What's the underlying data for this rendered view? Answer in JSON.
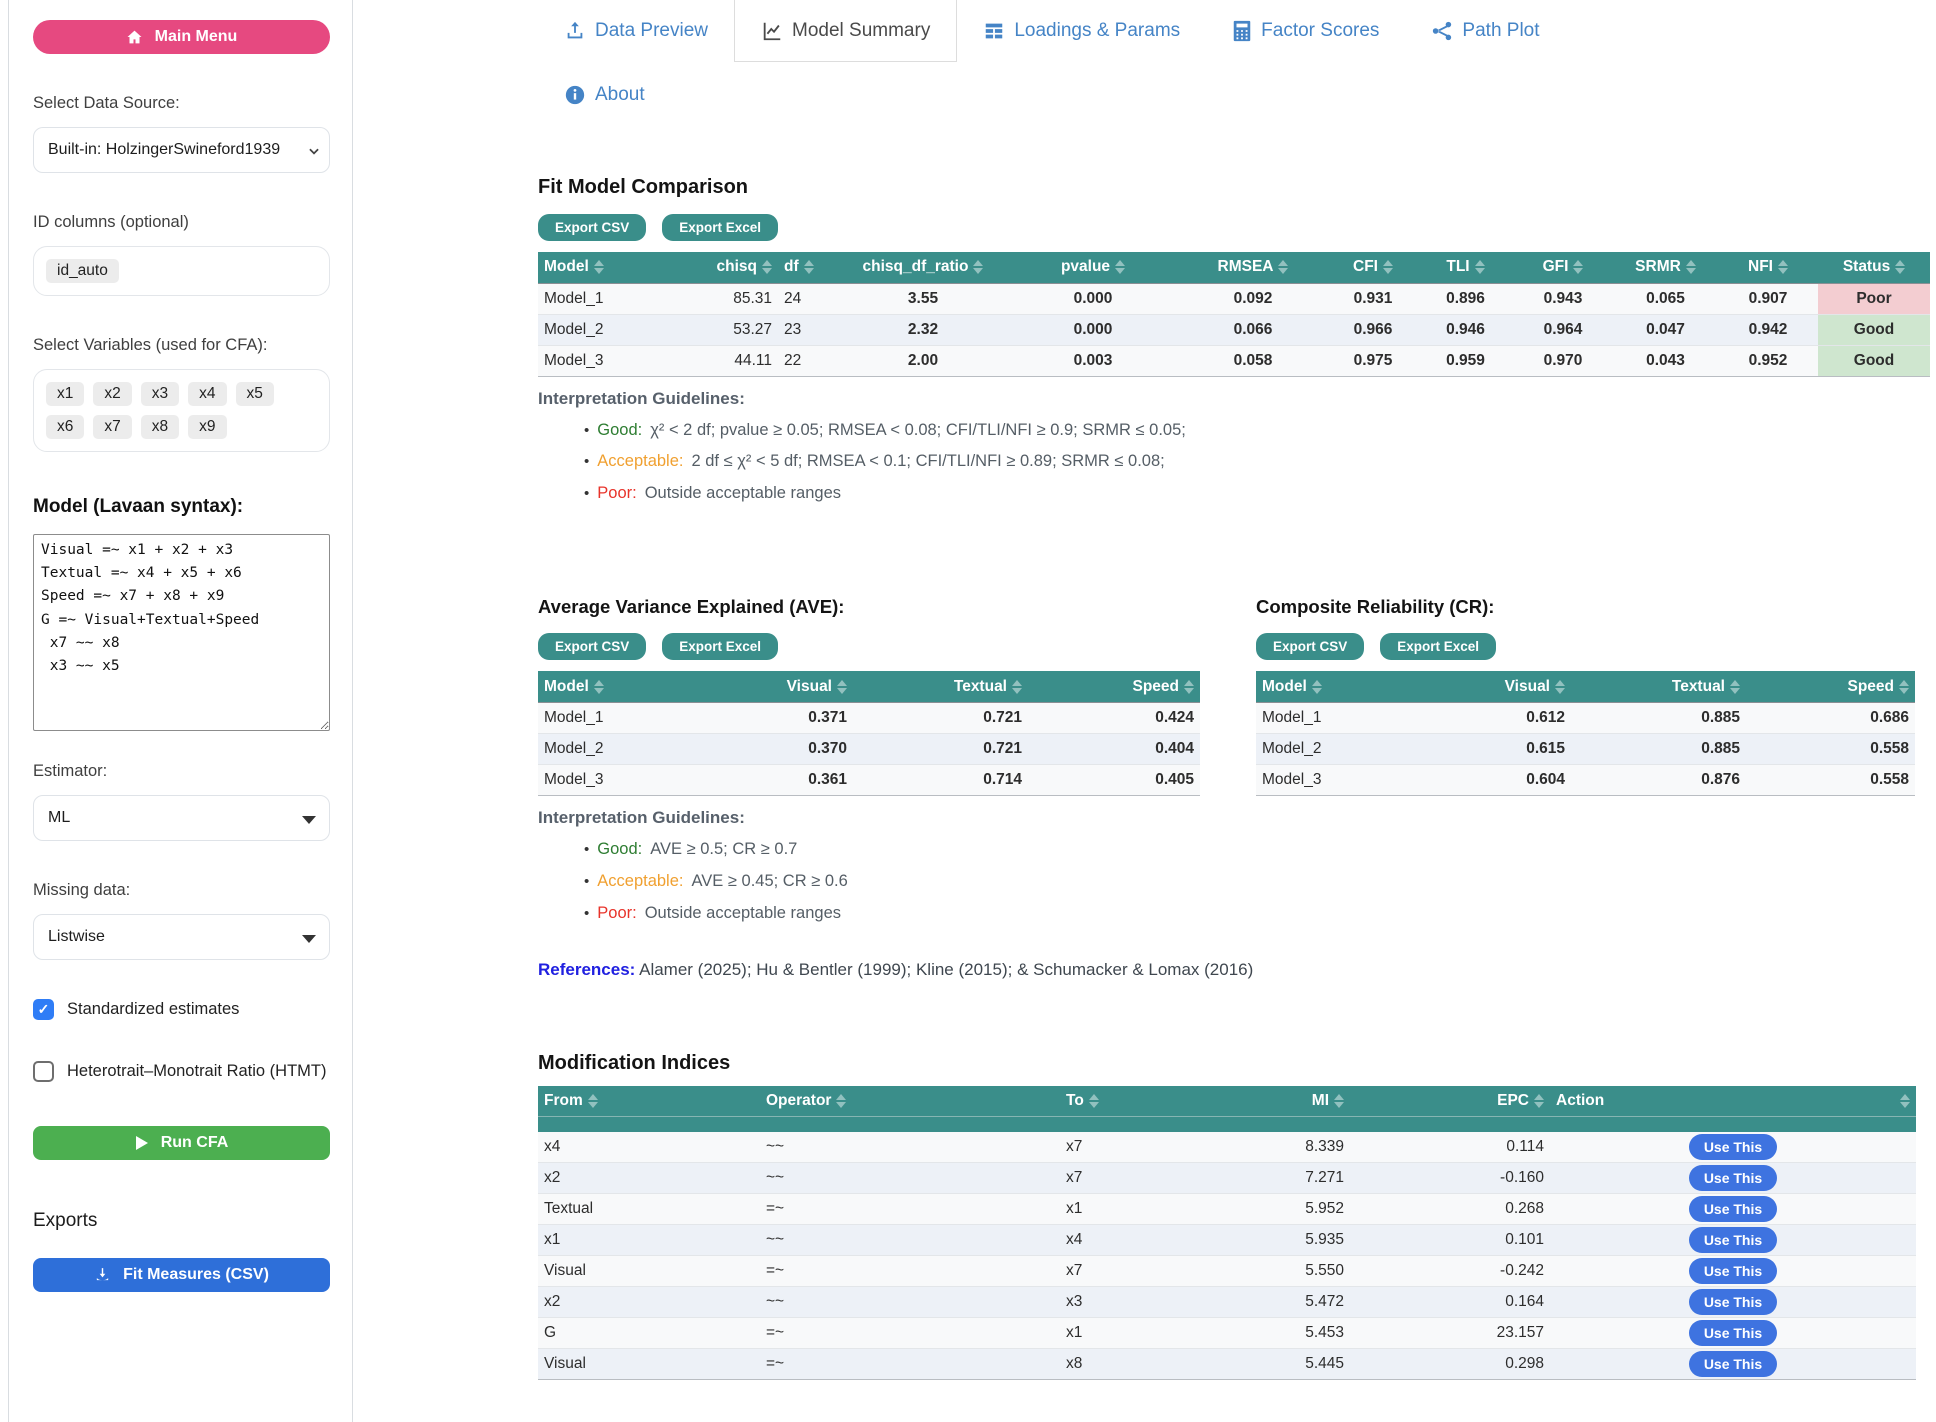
{
  "colors": {
    "teal": "#3a8e8a",
    "pink": "#e64980",
    "green_button": "#4caf50",
    "blue_button": "#2e6fd9",
    "use_this_blue": "#3e73e0",
    "link_blue": "#4584c6",
    "good_green": "#2e7d32",
    "warn_orange": "#f0a030",
    "bad_red": "#e8332a",
    "status_good_bg": "#cfe6cf",
    "status_poor_bg": "#f3cdd1"
  },
  "sidebar": {
    "main_menu_label": "Main Menu",
    "data_source": {
      "label": "Select Data Source:",
      "value": "Built-in: HolzingerSwineford1939"
    },
    "id_columns": {
      "label": "ID columns (optional)",
      "chips": [
        "id_auto"
      ]
    },
    "variables": {
      "label": "Select Variables (used for CFA):",
      "chips": [
        "x1",
        "x2",
        "x3",
        "x4",
        "x5",
        "x6",
        "x7",
        "x8",
        "x9"
      ]
    },
    "model": {
      "label": "Model (Lavaan syntax):",
      "value": "Visual =~ x1 + x2 + x3\nTextual =~ x4 + x5 + x6\nSpeed =~ x7 + x8 + x9\nG =~ Visual+Textual+Speed\n x7 ~~ x8\n x3 ~~ x5"
    },
    "estimator": {
      "label": "Estimator:",
      "value": "ML"
    },
    "missing": {
      "label": "Missing data:",
      "value": "Listwise"
    },
    "checkboxes": [
      {
        "label": "Standardized estimates",
        "checked": true
      },
      {
        "label": "Heterotrait–Monotrait Ratio (HTMT)",
        "checked": false
      }
    ],
    "run_label": "Run CFA",
    "exports_heading": "Exports",
    "fit_measures_label": "Fit Measures (CSV)"
  },
  "tabs": [
    {
      "label": "Data Preview",
      "icon": "upload-icon",
      "active": false
    },
    {
      "label": "Model Summary",
      "icon": "line-chart-icon",
      "active": true
    },
    {
      "label": "Loadings & Params",
      "icon": "table-icon",
      "active": false
    },
    {
      "label": "Factor Scores",
      "icon": "calculator-icon",
      "active": false
    },
    {
      "label": "Path Plot",
      "icon": "path-plot-icon",
      "active": false
    },
    {
      "label": "About",
      "icon": "info-icon",
      "active": false
    }
  ],
  "fit": {
    "title": "Fit Model Comparison",
    "export_csv": "Export CSV",
    "export_excel": "Export Excel",
    "columns": [
      "Model",
      "chisq",
      "df",
      "chisq_df_ratio",
      "pvalue",
      "RMSEA",
      "CFI",
      "TLI",
      "GFI",
      "SRMR",
      "NFI",
      "Status"
    ],
    "rows": [
      [
        {
          "v": "Model_1"
        },
        {
          "v": "85.31"
        },
        {
          "v": "24"
        },
        {
          "v": "3.55",
          "c": "orange"
        },
        {
          "v": "0.000",
          "c": "red"
        },
        {
          "v": "0.092",
          "c": "orange"
        },
        {
          "v": "0.931",
          "c": "green"
        },
        {
          "v": "0.896",
          "c": "orange"
        },
        {
          "v": "0.943",
          "c": "green"
        },
        {
          "v": "0.065",
          "c": "orange"
        },
        {
          "v": "0.907",
          "c": "green"
        },
        {
          "v": "Poor",
          "c": "status-poor"
        }
      ],
      [
        {
          "v": "Model_2"
        },
        {
          "v": "53.27"
        },
        {
          "v": "23"
        },
        {
          "v": "2.32",
          "c": "orange"
        },
        {
          "v": "0.000",
          "c": "red"
        },
        {
          "v": "0.066",
          "c": "green"
        },
        {
          "v": "0.966",
          "c": "green"
        },
        {
          "v": "0.946",
          "c": "green"
        },
        {
          "v": "0.964",
          "c": "green"
        },
        {
          "v": "0.047",
          "c": "green"
        },
        {
          "v": "0.942",
          "c": "green"
        },
        {
          "v": "Good",
          "c": "status-good"
        }
      ],
      [
        {
          "v": "Model_3"
        },
        {
          "v": "44.11"
        },
        {
          "v": "22"
        },
        {
          "v": "2.00",
          "c": "green"
        },
        {
          "v": "0.003",
          "c": "red"
        },
        {
          "v": "0.058",
          "c": "green"
        },
        {
          "v": "0.975",
          "c": "green"
        },
        {
          "v": "0.959",
          "c": "green"
        },
        {
          "v": "0.970",
          "c": "green"
        },
        {
          "v": "0.043",
          "c": "green"
        },
        {
          "v": "0.952",
          "c": "green"
        },
        {
          "v": "Good",
          "c": "status-good"
        }
      ]
    ]
  },
  "fit_guidelines": {
    "heading": "Interpretation Guidelines:",
    "items": [
      {
        "label": "Good:",
        "color": "green",
        "text": "χ² < 2 df; pvalue ≥ 0.05; RMSEA < 0.08; CFI/TLI/NFI ≥ 0.9; SRMR ≤ 0.05;"
      },
      {
        "label": "Acceptable:",
        "color": "orange",
        "text": "2 df ≤ χ² < 5 df; RMSEA < 0.1; CFI/TLI/NFI ≥ 0.89; SRMR ≤ 0.08;"
      },
      {
        "label": "Poor:",
        "color": "red",
        "text": "Outside acceptable ranges"
      }
    ]
  },
  "ave": {
    "title": "Average Variance Explained (AVE):",
    "export_csv": "Export CSV",
    "export_excel": "Export Excel",
    "columns": [
      "Model",
      "Visual",
      "Textual",
      "Speed"
    ],
    "rows": [
      [
        {
          "v": "Model_1"
        },
        {
          "v": "0.371",
          "c": "red"
        },
        {
          "v": "0.721",
          "c": "green"
        },
        {
          "v": "0.424",
          "c": "red"
        }
      ],
      [
        {
          "v": "Model_2"
        },
        {
          "v": "0.370",
          "c": "red"
        },
        {
          "v": "0.721",
          "c": "green"
        },
        {
          "v": "0.404",
          "c": "red"
        }
      ],
      [
        {
          "v": "Model_3"
        },
        {
          "v": "0.361",
          "c": "red"
        },
        {
          "v": "0.714",
          "c": "green"
        },
        {
          "v": "0.405",
          "c": "red"
        }
      ]
    ]
  },
  "cr": {
    "title": "Composite Reliability (CR):",
    "export_csv": "Export CSV",
    "export_excel": "Export Excel",
    "columns": [
      "Model",
      "Visual",
      "Textual",
      "Speed"
    ],
    "rows": [
      [
        {
          "v": "Model_1"
        },
        {
          "v": "0.612",
          "c": "orange"
        },
        {
          "v": "0.885",
          "c": "green"
        },
        {
          "v": "0.686",
          "c": "orange"
        }
      ],
      [
        {
          "v": "Model_2"
        },
        {
          "v": "0.615",
          "c": "orange"
        },
        {
          "v": "0.885",
          "c": "green"
        },
        {
          "v": "0.558",
          "c": "red"
        }
      ],
      [
        {
          "v": "Model_3"
        },
        {
          "v": "0.604",
          "c": "orange"
        },
        {
          "v": "0.876",
          "c": "green"
        },
        {
          "v": "0.558",
          "c": "red"
        }
      ]
    ]
  },
  "ave_cr_guidelines": {
    "heading": "Interpretation Guidelines:",
    "items": [
      {
        "label": "Good:",
        "color": "green",
        "text": "AVE ≥ 0.5; CR ≥ 0.7"
      },
      {
        "label": "Acceptable:",
        "color": "orange",
        "text": "AVE ≥ 0.45; CR ≥ 0.6"
      },
      {
        "label": "Poor:",
        "color": "red",
        "text": "Outside acceptable ranges"
      }
    ]
  },
  "references": {
    "label": "References:",
    "text": " Alamer (2025); Hu & Bentler (1999); Kline (2015); & Schumacker & Lomax (2016)"
  },
  "mi": {
    "title": "Modification Indices",
    "columns": [
      "From",
      "Operator",
      "To",
      "MI",
      "EPC",
      "Action"
    ],
    "action_label": "Use This",
    "rows": [
      [
        "x4",
        "~~",
        "x7",
        "8.339",
        "0.114"
      ],
      [
        "x2",
        "~~",
        "x7",
        "7.271",
        "-0.160"
      ],
      [
        "Textual",
        "=~",
        "x1",
        "5.952",
        "0.268"
      ],
      [
        "x1",
        "~~",
        "x4",
        "5.935",
        "0.101"
      ],
      [
        "Visual",
        "=~",
        "x7",
        "5.550",
        "-0.242"
      ],
      [
        "x2",
        "~~",
        "x3",
        "5.472",
        "0.164"
      ],
      [
        "G",
        "=~",
        "x1",
        "5.453",
        "23.157"
      ],
      [
        "Visual",
        "=~",
        "x8",
        "5.445",
        "0.298"
      ]
    ]
  }
}
